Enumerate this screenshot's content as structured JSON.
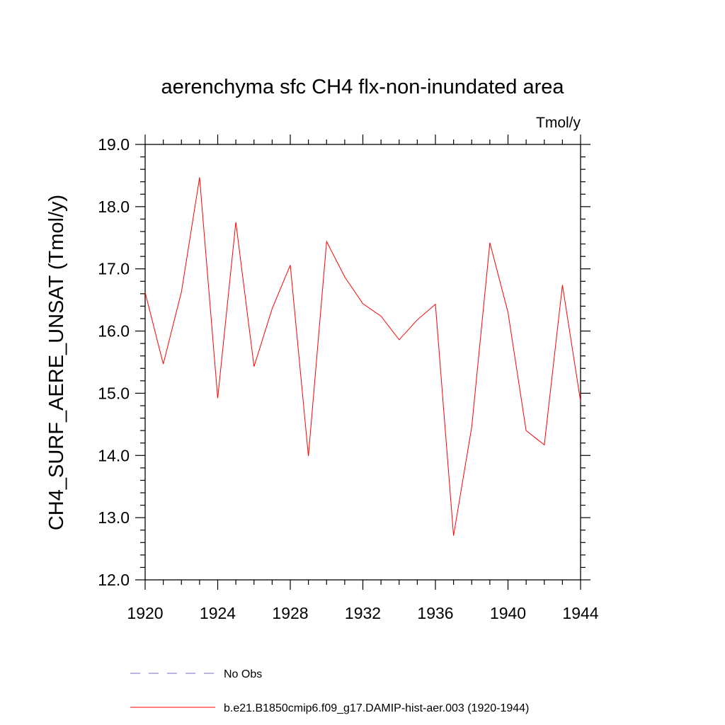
{
  "chart_data": {
    "type": "line",
    "title": "aerenchyma sfc CH4 flx-non-inundated area",
    "units_label": "Tmol/y",
    "ylabel": "CH4_SURF_AERE_UNSAT  (Tmol/y)",
    "xlabel": "",
    "xlim": [
      1920,
      1944
    ],
    "ylim": [
      12.0,
      19.0
    ],
    "xticks": [
      1920,
      1924,
      1928,
      1932,
      1936,
      1940,
      1944
    ],
    "xtick_labels": [
      "1920",
      "1924",
      "1928",
      "1932",
      "1936",
      "1940",
      "1944"
    ],
    "yticks": [
      12.0,
      13.0,
      14.0,
      15.0,
      16.0,
      17.0,
      18.0,
      19.0
    ],
    "ytick_labels": [
      "12.0",
      "13.0",
      "14.0",
      "15.0",
      "16.0",
      "17.0",
      "18.0",
      "19.0"
    ],
    "grid": false,
    "legend_position": "bottom",
    "series": [
      {
        "name": "b.e21.B1850cmip6.f09_g17.DAMIP-hist-aer.003 (1920-1944)",
        "color": "#ff0000",
        "dash": "solid",
        "x": [
          1920,
          1921,
          1922,
          1923,
          1924,
          1925,
          1926,
          1927,
          1928,
          1929,
          1930,
          1931,
          1932,
          1933,
          1934,
          1935,
          1936,
          1937,
          1938,
          1939,
          1940,
          1941,
          1942,
          1943,
          1944
        ],
        "y": [
          16.62,
          15.47,
          16.63,
          18.47,
          14.92,
          17.75,
          15.43,
          16.36,
          17.06,
          13.99,
          17.44,
          16.87,
          16.44,
          16.24,
          15.86,
          16.18,
          16.43,
          12.71,
          14.46,
          17.42,
          16.3,
          14.4,
          14.17,
          16.74,
          14.87
        ]
      }
    ],
    "legend": [
      {
        "label": "No Obs",
        "color": "#6f6fc4",
        "dash": "dashed"
      },
      {
        "label": "b.e21.B1850cmip6.f09_g17.DAMIP-hist-aer.003 (1920-1944)",
        "color": "#ff0000",
        "dash": "solid"
      }
    ]
  }
}
